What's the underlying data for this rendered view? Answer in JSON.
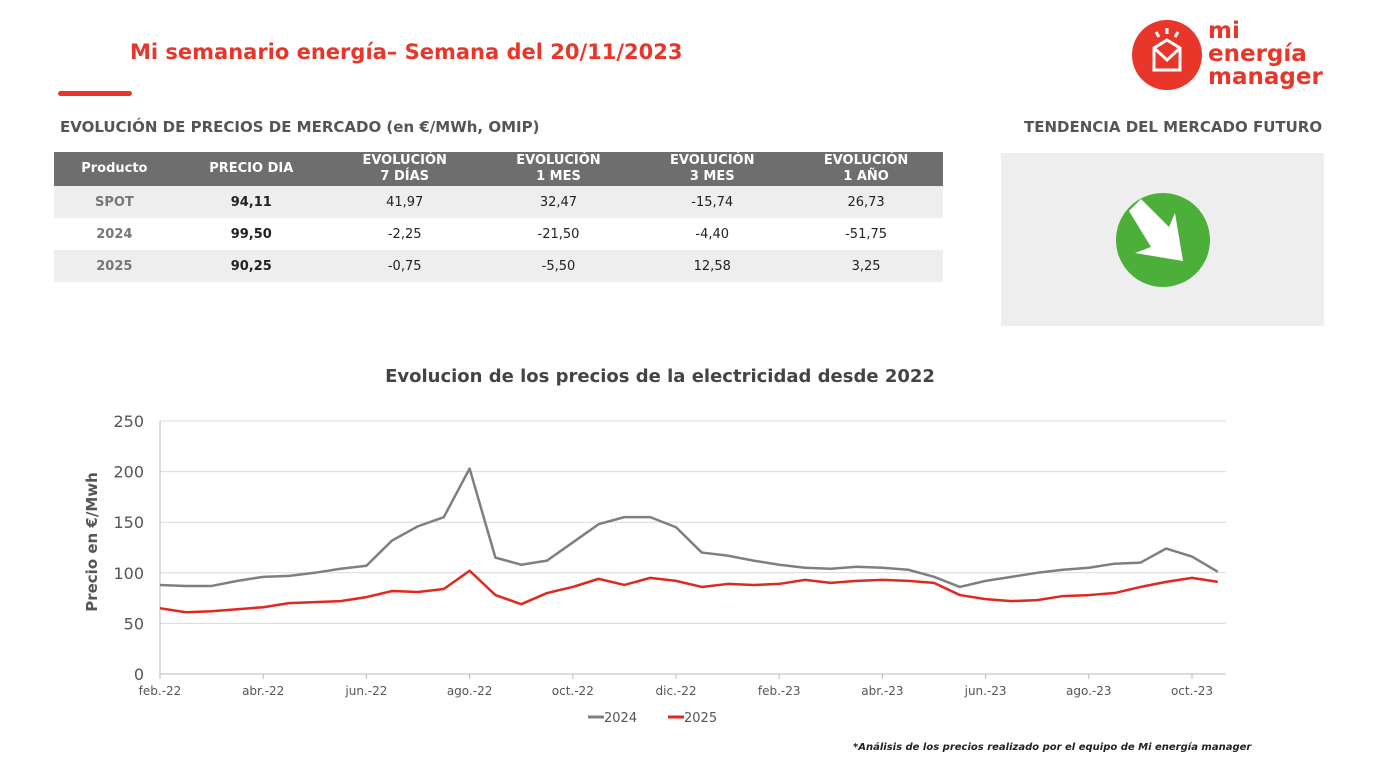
{
  "header": {
    "title": "Mi semanario energía– Semana del 20/11/2023",
    "logo": [
      "mi",
      "energía",
      "manager"
    ]
  },
  "table": {
    "title": "EVOLUCIÓN DE PRECIOS DE MERCADO (en €/MWh, OMIP)",
    "columns": [
      "Producto",
      "PRECIO DIA",
      "EVOLUCIÓN\n7 DÍAS",
      "EVOLUCIÓN\n1 MES",
      "EVOLUCIÓN\n3 MES",
      "EVOLUCIÓN\n1 AÑO"
    ],
    "rows": [
      [
        "SPOT",
        "94,11",
        "41,97",
        "32,47",
        "-15,74",
        "26,73"
      ],
      [
        "2024",
        "99,50",
        "-2,25",
        "-21,50",
        "-4,40",
        "-51,75"
      ],
      [
        "2025",
        "90,25",
        "-0,75",
        "-5,50",
        "12,58",
        "3,25"
      ]
    ]
  },
  "trend": {
    "title": "TENDENCIA DEL MERCADO FUTURO"
  },
  "chart_data": {
    "type": "line",
    "title": "Evolucion de los precios de la electricidad desde 2022",
    "y_label": "Precio en €/Mwh",
    "categories": [
      "feb.-22",
      null,
      null,
      null,
      "abr.-22",
      null,
      null,
      null,
      "jun.-22",
      null,
      null,
      null,
      "ago.-22",
      null,
      null,
      null,
      "oct.-22",
      null,
      null,
      null,
      "dic.-22",
      null,
      null,
      null,
      "feb.-23",
      null,
      null,
      null,
      "abr.-23",
      null,
      null,
      null,
      "jun.-23",
      null,
      null,
      null,
      "ago.-23",
      null,
      null,
      null,
      "oct.-23",
      null
    ],
    "series": [
      {
        "name": "2024",
        "color": "#7f7f7f",
        "values": [
          88,
          87,
          87,
          92,
          96,
          97,
          100,
          104,
          107,
          132,
          146,
          155,
          203,
          115,
          108,
          112,
          130,
          148,
          155,
          155,
          145,
          120,
          117,
          112,
          108,
          105,
          104,
          106,
          105,
          103,
          96,
          86,
          92,
          96,
          100,
          103,
          105,
          109,
          110,
          124,
          116,
          101
        ]
      },
      {
        "name": "2025",
        "color": "#e0281e",
        "values": [
          65,
          61,
          62,
          64,
          66,
          70,
          71,
          72,
          76,
          82,
          81,
          84,
          102,
          78,
          69,
          80,
          86,
          94,
          88,
          95,
          92,
          86,
          89,
          88,
          89,
          93,
          90,
          92,
          93,
          92,
          90,
          78,
          74,
          72,
          73,
          77,
          78,
          80,
          86,
          91,
          95,
          91
        ]
      }
    ],
    "ylim": [
      0,
      250
    ],
    "yticks": [
      0,
      50,
      100,
      150,
      200,
      250
    ],
    "grid": true,
    "legend": "bottom"
  },
  "footnote": "*Análisis de los precios realizado por el equipo de Mi energía manager"
}
